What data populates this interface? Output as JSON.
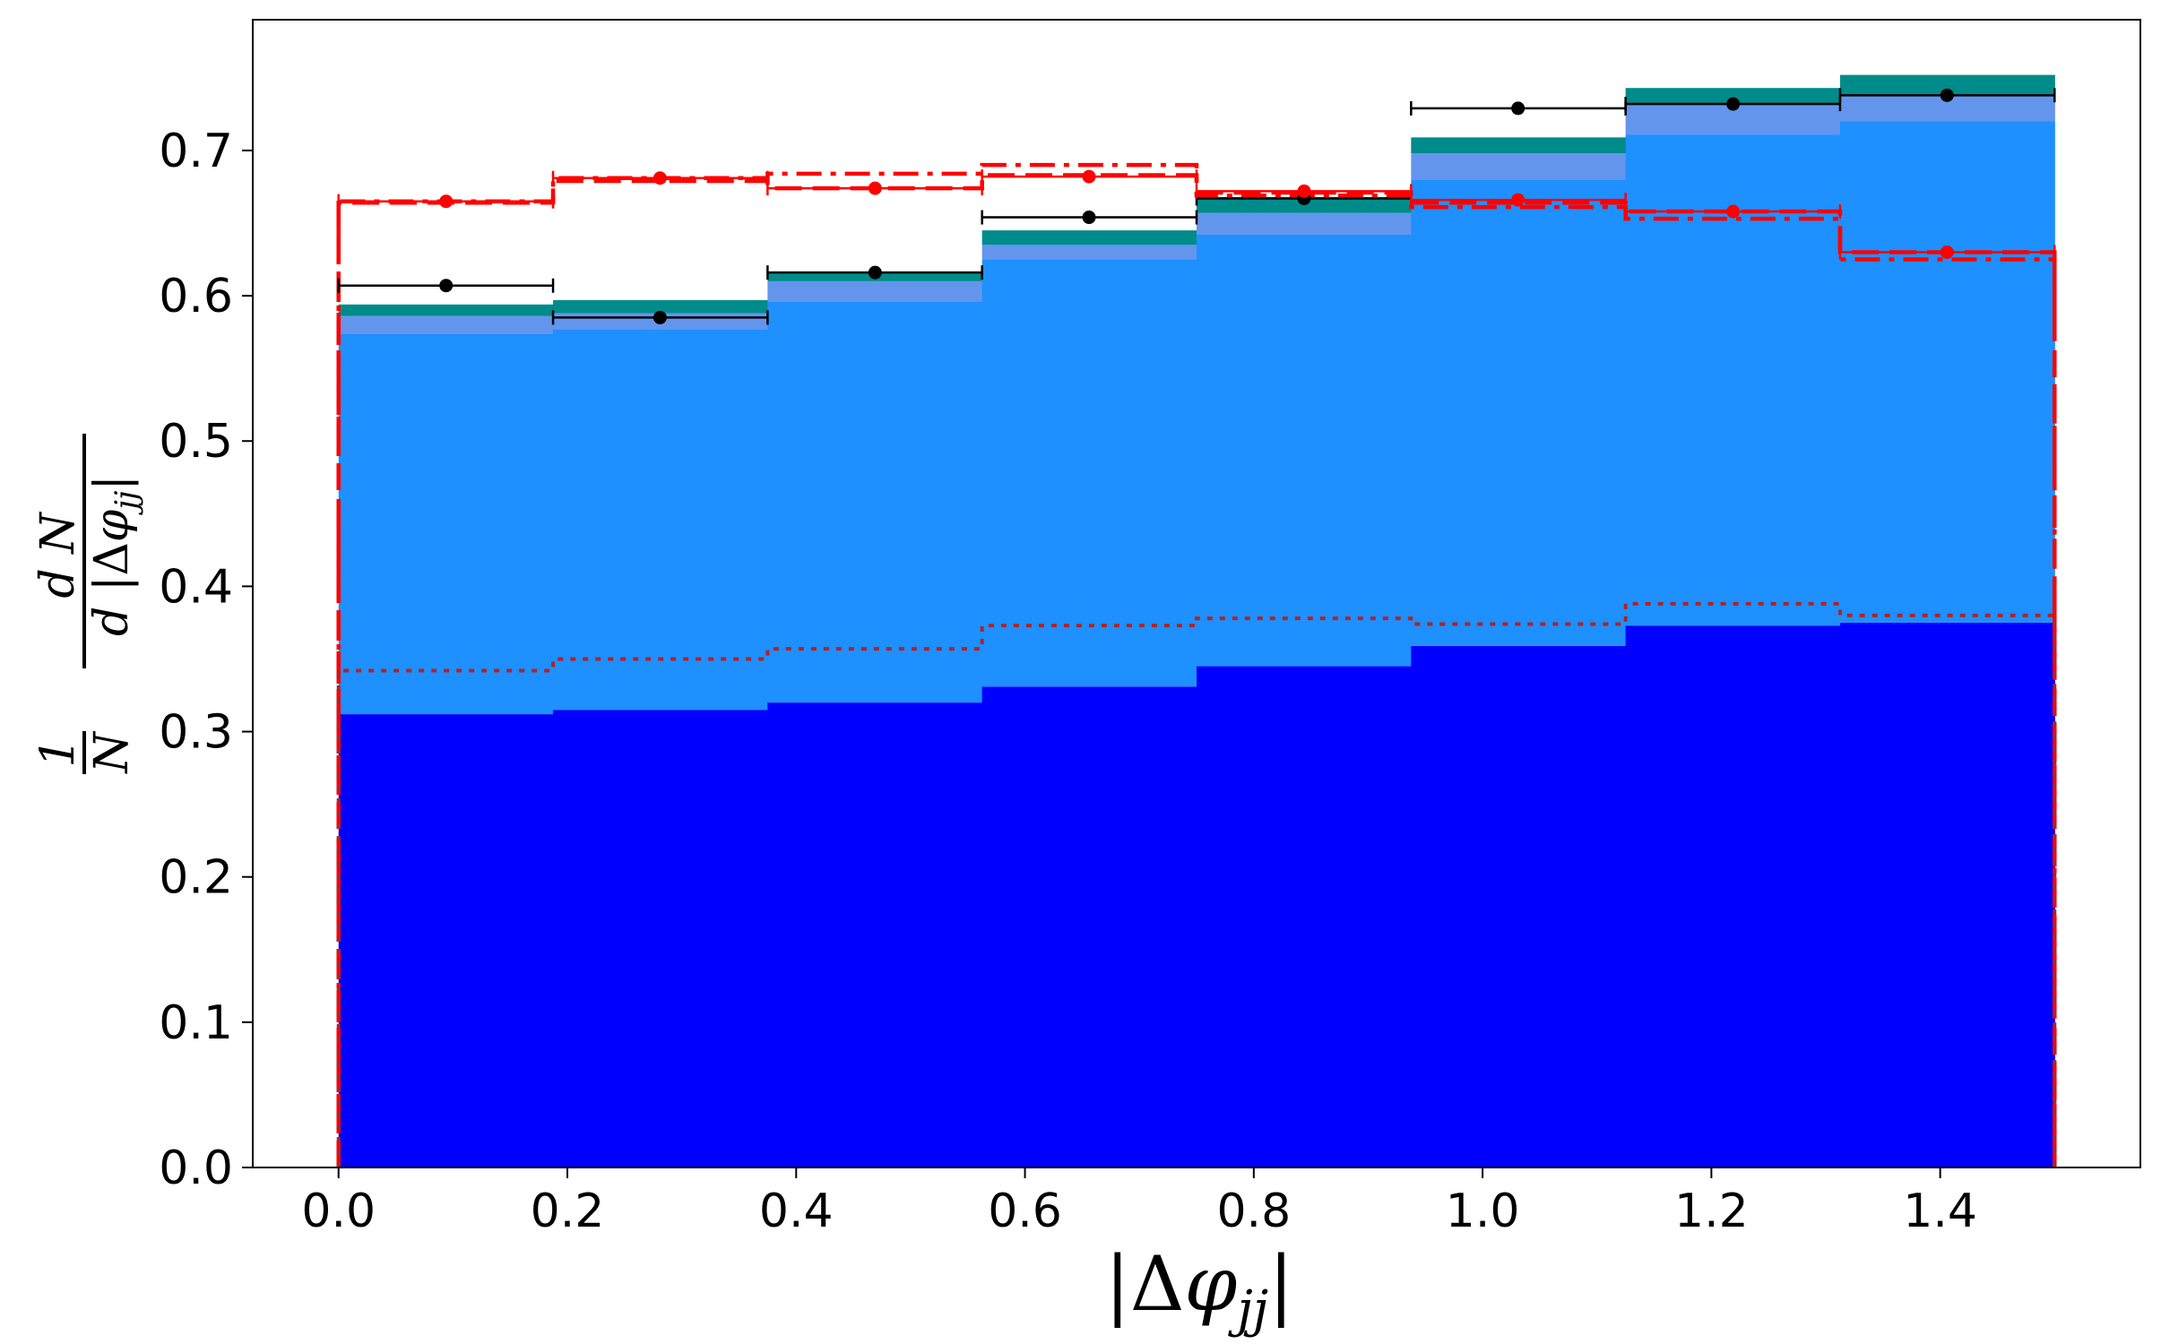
{
  "chart_data": {
    "type": "bar",
    "title": "",
    "xlabel": "|Δφjj|",
    "ylabel": "1/N dN/d|Δφjj|",
    "xlim": [
      -0.075,
      1.575
    ],
    "ylim": [
      0.0,
      0.79
    ],
    "x_ticks": [
      0.0,
      0.2,
      0.4,
      0.6,
      0.8,
      1.0,
      1.2,
      1.4
    ],
    "x_tick_labels": [
      "0.0",
      "0.2",
      "0.4",
      "0.6",
      "0.8",
      "1.0",
      "1.2",
      "1.4"
    ],
    "y_ticks": [
      0.0,
      0.1,
      0.2,
      0.3,
      0.4,
      0.5,
      0.6,
      0.7
    ],
    "y_tick_labels": [
      "0.0",
      "0.1",
      "0.2",
      "0.3",
      "0.4",
      "0.5",
      "0.6",
      "0.7"
    ],
    "grid": false,
    "bin_edges": [
      0.0,
      0.1875,
      0.375,
      0.5625,
      0.75,
      0.9375,
      1.125,
      1.3125,
      1.5
    ],
    "stack_colors": [
      "#0000ff",
      "#1e90ff",
      "#6495ed",
      "#008b8b"
    ],
    "stacked_series": [
      {
        "values": [
          0.312,
          0.315,
          0.32,
          0.331,
          0.345,
          0.359,
          0.373,
          0.375
        ]
      },
      {
        "values": [
          0.262,
          0.262,
          0.276,
          0.294,
          0.297,
          0.321,
          0.338,
          0.345
        ]
      },
      {
        "values": [
          0.012,
          0.011,
          0.014,
          0.01,
          0.015,
          0.018,
          0.02,
          0.018
        ]
      },
      {
        "values": [
          0.008,
          0.009,
          0.006,
          0.01,
          0.011,
          0.011,
          0.012,
          0.014
        ]
      }
    ],
    "step_lines": [
      {
        "style": "dashed",
        "color": "#ff0000",
        "values": [
          0.664,
          0.679,
          0.674,
          0.683,
          0.671,
          0.664,
          0.658,
          0.63
        ]
      },
      {
        "style": "dashdot",
        "color": "#ff0000",
        "values": [
          0.665,
          0.681,
          0.684,
          0.69,
          0.669,
          0.661,
          0.653,
          0.625
        ]
      },
      {
        "style": "dotted",
        "color": "#b22222",
        "values": [
          0.342,
          0.35,
          0.357,
          0.373,
          0.378,
          0.374,
          0.388,
          0.38
        ]
      }
    ],
    "markers": [
      {
        "color": "#000000",
        "x": [
          0.094,
          0.281,
          0.469,
          0.656,
          0.844,
          1.031,
          1.219,
          1.406
        ],
        "y": [
          0.607,
          0.585,
          0.616,
          0.654,
          0.667,
          0.729,
          0.732,
          0.738
        ]
      },
      {
        "color": "#ff0000",
        "x": [
          0.094,
          0.281,
          0.469,
          0.656,
          0.844,
          1.031,
          1.219,
          1.406
        ],
        "y": [
          0.665,
          0.681,
          0.674,
          0.682,
          0.672,
          0.666,
          0.658,
          0.63
        ]
      }
    ]
  }
}
